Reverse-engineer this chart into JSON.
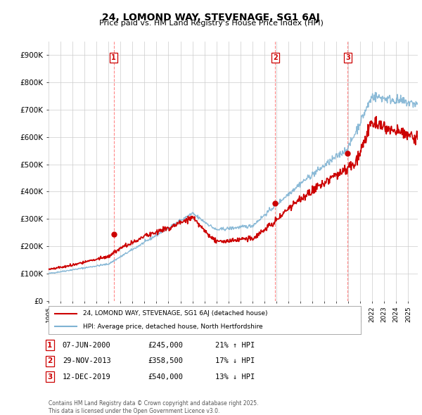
{
  "title": "24, LOMOND WAY, STEVENAGE, SG1 6AJ",
  "subtitle": "Price paid vs. HM Land Registry's House Price Index (HPI)",
  "ylim": [
    0,
    950000
  ],
  "yticks": [
    0,
    100000,
    200000,
    300000,
    400000,
    500000,
    600000,
    700000,
    800000,
    900000
  ],
  "ytick_labels": [
    "£0",
    "£100K",
    "£200K",
    "£300K",
    "£400K",
    "£500K",
    "£600K",
    "£700K",
    "£800K",
    "£900K"
  ],
  "xmin": 1995.0,
  "xmax": 2025.8,
  "sales": [
    {
      "label": "1",
      "date_num": 2000.44,
      "price": 245000,
      "note": "07-JUN-2000",
      "price_str": "£245,000",
      "hpi_rel": "21% ↑ HPI"
    },
    {
      "label": "2",
      "date_num": 2013.91,
      "price": 358500,
      "note": "29-NOV-2013",
      "price_str": "£358,500",
      "hpi_rel": "17% ↓ HPI"
    },
    {
      "label": "3",
      "date_num": 2019.95,
      "price": 540000,
      "note": "12-DEC-2019",
      "price_str": "£540,000",
      "hpi_rel": "13% ↓ HPI"
    }
  ],
  "red_line_color": "#cc0000",
  "blue_line_color": "#7fb3d3",
  "vline_color": "#ff8888",
  "background_color": "#ffffff",
  "grid_color": "#cccccc",
  "legend_label_red": "24, LOMOND WAY, STEVENAGE, SG1 6AJ (detached house)",
  "legend_label_blue": "HPI: Average price, detached house, North Hertfordshire",
  "footer": "Contains HM Land Registry data © Crown copyright and database right 2025.\nThis data is licensed under the Open Government Licence v3.0."
}
